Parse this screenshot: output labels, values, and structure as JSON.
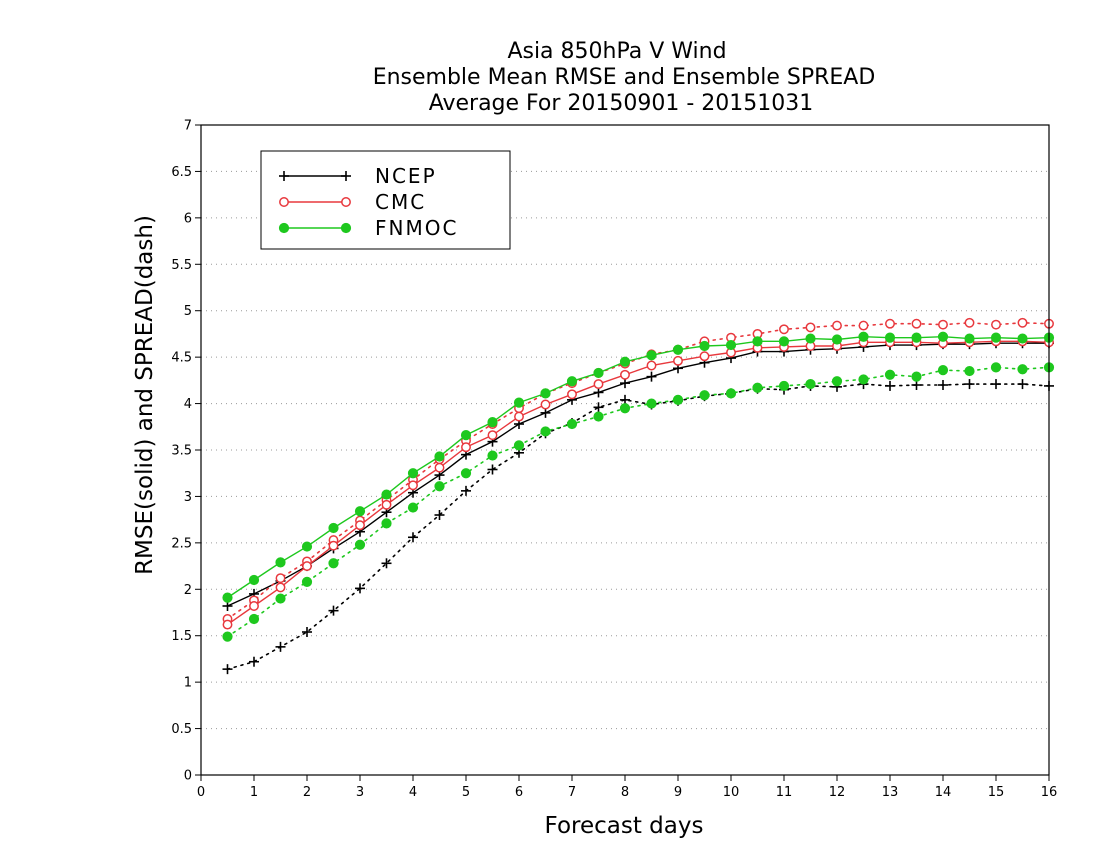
{
  "chart_data": {
    "type": "line",
    "title_lines": [
      "Asia 850hPa V Wind",
      "Ensemble Mean RMSE and Ensemble SPREAD",
      "Average For 20150901 - 20151031"
    ],
    "xlabel": "Forecast days",
    "ylabel": "RMSE(solid) and SPREAD(dash)",
    "xlim": [
      0,
      16
    ],
    "ylim": [
      0,
      7
    ],
    "x_ticks": [
      "0",
      "1",
      "2",
      "3",
      "4",
      "5",
      "6",
      "7",
      "8",
      "9",
      "10",
      "11",
      "12",
      "13",
      "14",
      "15",
      "16"
    ],
    "y_ticks": [
      "0",
      "0.5",
      "1",
      "1.5",
      "2",
      "2.5",
      "3",
      "3.5",
      "4",
      "4.5",
      "5",
      "5.5",
      "6",
      "6.5",
      "7"
    ],
    "grid": "horizontal dotted",
    "legend_position": "top-left",
    "x": [
      0.5,
      1,
      1.5,
      2,
      2.5,
      3,
      3.5,
      4,
      4.5,
      5,
      5.5,
      6,
      6.5,
      7,
      7.5,
      8,
      8.5,
      9,
      9.5,
      10,
      10.5,
      11,
      11.5,
      12,
      12.5,
      13,
      13.5,
      14,
      14.5,
      15,
      15.5,
      16
    ],
    "series": [
      {
        "name": "NCEP",
        "color": "#000000",
        "marker": "plus",
        "rmse": [
          1.82,
          1.95,
          2.09,
          2.25,
          2.44,
          2.62,
          2.83,
          3.04,
          3.23,
          3.45,
          3.59,
          3.78,
          3.9,
          4.04,
          4.12,
          4.22,
          4.29,
          4.38,
          4.44,
          4.49,
          4.56,
          4.56,
          4.58,
          4.59,
          4.61,
          4.63,
          4.63,
          4.64,
          4.64,
          4.65,
          4.65,
          4.65
        ],
        "spread": [
          1.14,
          1.22,
          1.38,
          1.54,
          1.77,
          2.01,
          2.28,
          2.56,
          2.8,
          3.06,
          3.29,
          3.47,
          3.68,
          3.79,
          3.96,
          4.04,
          3.99,
          4.03,
          4.08,
          4.11,
          4.16,
          4.15,
          4.19,
          4.18,
          4.21,
          4.19,
          4.2,
          4.2,
          4.21,
          4.21,
          4.21,
          4.19
        ]
      },
      {
        "name": "CMC",
        "color": "#e8383d",
        "marker": "open-circle",
        "rmse": [
          1.62,
          1.82,
          2.02,
          2.25,
          2.47,
          2.69,
          2.91,
          3.12,
          3.31,
          3.53,
          3.66,
          3.86,
          3.99,
          4.1,
          4.21,
          4.31,
          4.41,
          4.46,
          4.51,
          4.55,
          4.6,
          4.61,
          4.62,
          4.62,
          4.66,
          4.66,
          4.66,
          4.65,
          4.66,
          4.67,
          4.67,
          4.66
        ],
        "spread": [
          1.68,
          1.88,
          2.12,
          2.3,
          2.53,
          2.74,
          2.96,
          3.18,
          3.4,
          3.6,
          3.78,
          3.95,
          4.11,
          4.22,
          4.33,
          4.43,
          4.53,
          4.58,
          4.67,
          4.71,
          4.75,
          4.8,
          4.82,
          4.84,
          4.84,
          4.86,
          4.86,
          4.85,
          4.87,
          4.85,
          4.87,
          4.86
        ]
      },
      {
        "name": "FNMOC",
        "color": "#1ec81e",
        "marker": "filled-circle",
        "rmse": [
          1.91,
          2.1,
          2.29,
          2.46,
          2.66,
          2.84,
          3.02,
          3.25,
          3.43,
          3.66,
          3.8,
          4.01,
          4.11,
          4.24,
          4.33,
          4.45,
          4.52,
          4.58,
          4.62,
          4.63,
          4.67,
          4.67,
          4.7,
          4.69,
          4.72,
          4.71,
          4.71,
          4.72,
          4.7,
          4.71,
          4.7,
          4.71
        ],
        "spread": [
          1.49,
          1.68,
          1.9,
          2.08,
          2.28,
          2.48,
          2.71,
          2.88,
          3.11,
          3.25,
          3.44,
          3.55,
          3.7,
          3.78,
          3.86,
          3.95,
          4.0,
          4.04,
          4.09,
          4.11,
          4.17,
          4.19,
          4.21,
          4.24,
          4.26,
          4.31,
          4.29,
          4.36,
          4.35,
          4.39,
          4.37,
          4.39
        ]
      }
    ]
  }
}
